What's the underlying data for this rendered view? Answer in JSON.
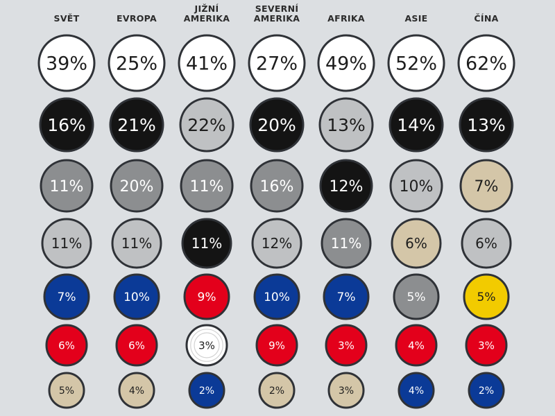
{
  "chart_data": {
    "type": "table",
    "title": "",
    "categories": [
      [
        "SVĚT"
      ],
      [
        "EVROPA"
      ],
      [
        "JIŽNÍ",
        "AMERIKA"
      ],
      [
        "SEVERNÍ",
        "AMERIKA"
      ],
      [
        "AFRIKA"
      ],
      [
        "ASIE"
      ],
      [
        "ČÍNA"
      ]
    ],
    "colors": {
      "white": "#ffffff",
      "black": "#141414",
      "light_gray": "#bfc1c3",
      "mid_gray": "#8c8e90",
      "beige": "#d4c6a8",
      "blue": "#0b3a97",
      "red": "#e3001b",
      "yellow": "#f2cb00",
      "outline": "#2f3237"
    },
    "rows": [
      [
        {
          "value": 39,
          "label": "39%",
          "color": "white"
        },
        {
          "value": 25,
          "label": "25%",
          "color": "white"
        },
        {
          "value": 41,
          "label": "41%",
          "color": "white"
        },
        {
          "value": 27,
          "label": "27%",
          "color": "white"
        },
        {
          "value": 49,
          "label": "49%",
          "color": "white"
        },
        {
          "value": 52,
          "label": "52%",
          "color": "white"
        },
        {
          "value": 62,
          "label": "62%",
          "color": "white"
        }
      ],
      [
        {
          "value": 16,
          "label": "16%",
          "color": "black"
        },
        {
          "value": 21,
          "label": "21%",
          "color": "black"
        },
        {
          "value": 22,
          "label": "22%",
          "color": "light_gray"
        },
        {
          "value": 20,
          "label": "20%",
          "color": "black"
        },
        {
          "value": 13,
          "label": "13%",
          "color": "light_gray"
        },
        {
          "value": 14,
          "label": "14%",
          "color": "black"
        },
        {
          "value": 13,
          "label": "13%",
          "color": "black"
        }
      ],
      [
        {
          "value": 11,
          "label": "11%",
          "color": "mid_gray"
        },
        {
          "value": 20,
          "label": "20%",
          "color": "mid_gray"
        },
        {
          "value": 11,
          "label": "11%",
          "color": "mid_gray"
        },
        {
          "value": 16,
          "label": "16%",
          "color": "mid_gray"
        },
        {
          "value": 12,
          "label": "12%",
          "color": "black"
        },
        {
          "value": 10,
          "label": "10%",
          "color": "light_gray"
        },
        {
          "value": 7,
          "label": "7%",
          "color": "beige"
        }
      ],
      [
        {
          "value": 11,
          "label": "11%",
          "color": "light_gray"
        },
        {
          "value": 11,
          "label": "11%",
          "color": "light_gray"
        },
        {
          "value": 11,
          "label": "11%",
          "color": "black"
        },
        {
          "value": 12,
          "label": "12%",
          "color": "light_gray"
        },
        {
          "value": 11,
          "label": "11%",
          "color": "mid_gray"
        },
        {
          "value": 6,
          "label": "6%",
          "color": "beige"
        },
        {
          "value": 6,
          "label": "6%",
          "color": "light_gray"
        }
      ],
      [
        {
          "value": 7,
          "label": "7%",
          "color": "blue"
        },
        {
          "value": 10,
          "label": "10%",
          "color": "blue"
        },
        {
          "value": 9,
          "label": "9%",
          "color": "red"
        },
        {
          "value": 10,
          "label": "10%",
          "color": "blue"
        },
        {
          "value": 7,
          "label": "7%",
          "color": "blue"
        },
        {
          "value": 5,
          "label": "5%",
          "color": "mid_gray"
        },
        {
          "value": 5,
          "label": "5%",
          "color": "yellow"
        }
      ],
      [
        {
          "value": 6,
          "label": "6%",
          "color": "red"
        },
        {
          "value": 6,
          "label": "6%",
          "color": "red"
        },
        {
          "value": 3,
          "label": "3%",
          "color": "white",
          "style": "ringed"
        },
        {
          "value": 9,
          "label": "9%",
          "color": "red"
        },
        {
          "value": 3,
          "label": "3%",
          "color": "red"
        },
        {
          "value": 4,
          "label": "4%",
          "color": "red"
        },
        {
          "value": 3,
          "label": "3%",
          "color": "red"
        }
      ],
      [
        {
          "value": 5,
          "label": "5%",
          "color": "beige"
        },
        {
          "value": 4,
          "label": "4%",
          "color": "beige"
        },
        {
          "value": 2,
          "label": "2%",
          "color": "blue"
        },
        {
          "value": 2,
          "label": "2%",
          "color": "beige"
        },
        {
          "value": 3,
          "label": "3%",
          "color": "beige"
        },
        {
          "value": 4,
          "label": "4%",
          "color": "blue"
        },
        {
          "value": 2,
          "label": "2%",
          "color": "blue"
        }
      ]
    ]
  }
}
